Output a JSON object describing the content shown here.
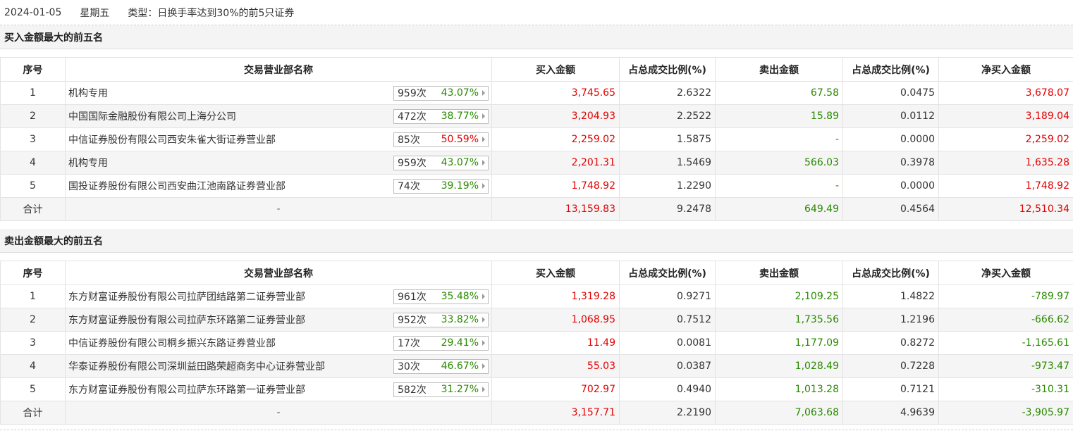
{
  "header": {
    "date": "2024-01-05",
    "weekday": "星期五",
    "type_text": "类型：日换手率达到30%的前5只证券"
  },
  "columns": [
    "序号",
    "交易营业部名称",
    "买入金额",
    "占总成交比例(%)",
    "卖出金额",
    "占总成交比例(%)",
    "净买入金额"
  ],
  "colors": {
    "up": "#e40000",
    "down": "#2a8a00"
  },
  "buy_section": {
    "title": "买入金额最大的前五名",
    "rows": [
      {
        "idx": "1",
        "name": "机构专用",
        "count": "959次",
        "rate": "43.07%",
        "rate_color": "green",
        "buy": "3,745.65",
        "buy_pct": "2.6322",
        "sell": "67.58",
        "sell_pct": "0.0475",
        "net": "3,678.07",
        "net_color": "red"
      },
      {
        "idx": "2",
        "name": "中国国际金融股份有限公司上海分公司",
        "count": "472次",
        "rate": "38.77%",
        "rate_color": "green",
        "buy": "3,204.93",
        "buy_pct": "2.2522",
        "sell": "15.89",
        "sell_pct": "0.0112",
        "net": "3,189.04",
        "net_color": "red"
      },
      {
        "idx": "3",
        "name": "中信证券股份有限公司西安朱雀大街证券营业部",
        "count": "85次",
        "rate": "50.59%",
        "rate_color": "red",
        "buy": "2,259.02",
        "buy_pct": "1.5875",
        "sell": "-",
        "sell_pct": "0.0000",
        "net": "2,259.02",
        "net_color": "red"
      },
      {
        "idx": "4",
        "name": "机构专用",
        "count": "959次",
        "rate": "43.07%",
        "rate_color": "green",
        "buy": "2,201.31",
        "buy_pct": "1.5469",
        "sell": "566.03",
        "sell_pct": "0.3978",
        "net": "1,635.28",
        "net_color": "red"
      },
      {
        "idx": "5",
        "name": "国投证券股份有限公司西安曲江池南路证券营业部",
        "count": "74次",
        "rate": "39.19%",
        "rate_color": "green",
        "buy": "1,748.92",
        "buy_pct": "1.2290",
        "sell": "-",
        "sell_pct": "0.0000",
        "net": "1,748.92",
        "net_color": "red"
      }
    ],
    "total": {
      "label": "合计",
      "name": "-",
      "buy": "13,159.83",
      "buy_pct": "9.2478",
      "sell": "649.49",
      "sell_pct": "0.4564",
      "net": "12,510.34",
      "net_color": "red"
    }
  },
  "sell_section": {
    "title": "卖出金额最大的前五名",
    "rows": [
      {
        "idx": "1",
        "name": "东方财富证券股份有限公司拉萨团结路第二证券营业部",
        "count": "961次",
        "rate": "35.48%",
        "rate_color": "green",
        "buy": "1,319.28",
        "buy_pct": "0.9271",
        "sell": "2,109.25",
        "sell_pct": "1.4822",
        "net": "-789.97",
        "net_color": "green"
      },
      {
        "idx": "2",
        "name": "东方财富证券股份有限公司拉萨东环路第二证券营业部",
        "count": "952次",
        "rate": "33.82%",
        "rate_color": "green",
        "buy": "1,068.95",
        "buy_pct": "0.7512",
        "sell": "1,735.56",
        "sell_pct": "1.2196",
        "net": "-666.62",
        "net_color": "green"
      },
      {
        "idx": "3",
        "name": "中信证券股份有限公司桐乡振兴东路证券营业部",
        "count": "17次",
        "rate": "29.41%",
        "rate_color": "green",
        "buy": "11.49",
        "buy_pct": "0.0081",
        "sell": "1,177.09",
        "sell_pct": "0.8272",
        "net": "-1,165.61",
        "net_color": "green"
      },
      {
        "idx": "4",
        "name": "华泰证券股份有限公司深圳益田路荣超商务中心证券营业部",
        "count": "30次",
        "rate": "46.67%",
        "rate_color": "green",
        "buy": "55.03",
        "buy_pct": "0.0387",
        "sell": "1,028.49",
        "sell_pct": "0.7228",
        "net": "-973.47",
        "net_color": "green"
      },
      {
        "idx": "5",
        "name": "东方财富证券股份有限公司拉萨东环路第一证券营业部",
        "count": "582次",
        "rate": "31.27%",
        "rate_color": "green",
        "buy": "702.97",
        "buy_pct": "0.4940",
        "sell": "1,013.28",
        "sell_pct": "0.7121",
        "net": "-310.31",
        "net_color": "green"
      }
    ],
    "total": {
      "label": "合计",
      "name": "-",
      "buy": "3,157.71",
      "buy_pct": "2.2190",
      "sell": "7,063.68",
      "sell_pct": "4.9639",
      "net": "-3,905.97",
      "net_color": "green"
    }
  }
}
